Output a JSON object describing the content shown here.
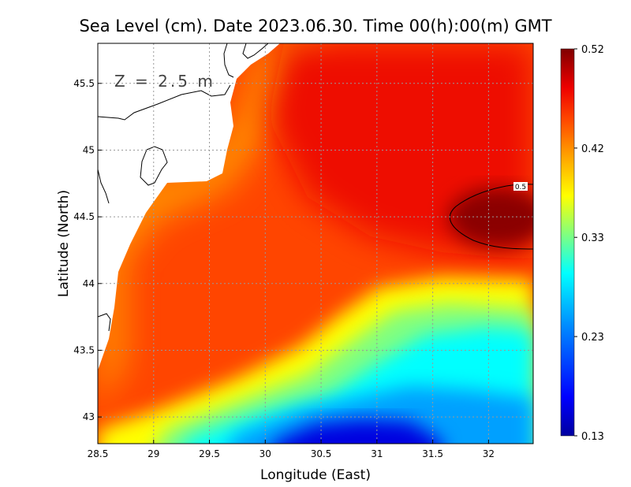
{
  "chart_data": {
    "type": "heatmap",
    "title": "Sea Level (cm). Date 2023.06.30. Time 00(h):00(m) GMT",
    "xlabel": "Longitude (East)",
    "ylabel": "Latitude (North)",
    "annotation": "Z = 2.5 m",
    "xlim": [
      28.5,
      32.4
    ],
    "ylim": [
      42.8,
      45.8
    ],
    "x_ticks": [
      {
        "value": 28.5,
        "label": "28.5"
      },
      {
        "value": 29,
        "label": "29"
      },
      {
        "value": 29.5,
        "label": "29.5"
      },
      {
        "value": 30,
        "label": "30"
      },
      {
        "value": 30.5,
        "label": "30.5"
      },
      {
        "value": 31,
        "label": "31"
      },
      {
        "value": 31.5,
        "label": "31.5"
      },
      {
        "value": 32,
        "label": "32"
      }
    ],
    "y_ticks": [
      {
        "value": 43,
        "label": "43"
      },
      {
        "value": 43.5,
        "label": "43.5"
      },
      {
        "value": 44,
        "label": "44"
      },
      {
        "value": 44.5,
        "label": "44.5"
      },
      {
        "value": 45,
        "label": "45"
      },
      {
        "value": 45.5,
        "label": "45.5"
      }
    ],
    "grid": true,
    "colorbar": {
      "min": 0.13,
      "max": 0.52,
      "ticks": [
        {
          "value": 0.52,
          "label": "0.52"
        },
        {
          "value": 0.42,
          "label": "0.42"
        },
        {
          "value": 0.33,
          "label": "0.33"
        },
        {
          "value": 0.23,
          "label": "0.23"
        },
        {
          "value": 0.13,
          "label": "0.13"
        }
      ],
      "colormap": [
        "#0000a0",
        "#0000ff",
        "#0088ff",
        "#00ffff",
        "#80ff80",
        "#ffff00",
        "#ffa500",
        "#ff4500",
        "#ee0000",
        "#800000"
      ]
    },
    "contours": [
      {
        "level": 0.5,
        "label": "0.5"
      }
    ],
    "field_samples": [
      {
        "lon": 28.6,
        "lat": 43.0,
        "value": 0.39
      },
      {
        "lon": 28.8,
        "lat": 43.8,
        "value": 0.44
      },
      {
        "lon": 29.0,
        "lat": 44.5,
        "value": 0.44
      },
      {
        "lon": 29.5,
        "lat": 43.2,
        "value": 0.38
      },
      {
        "lon": 29.5,
        "lat": 44.0,
        "value": 0.44
      },
      {
        "lon": 29.8,
        "lat": 45.2,
        "value": 0.43
      },
      {
        "lon": 30.0,
        "lat": 42.9,
        "value": 0.22
      },
      {
        "lon": 30.0,
        "lat": 43.5,
        "value": 0.43
      },
      {
        "lon": 30.0,
        "lat": 44.5,
        "value": 0.45
      },
      {
        "lon": 30.3,
        "lat": 45.7,
        "value": 0.42
      },
      {
        "lon": 30.5,
        "lat": 42.85,
        "value": 0.14
      },
      {
        "lon": 30.5,
        "lat": 43.3,
        "value": 0.31
      },
      {
        "lon": 30.5,
        "lat": 44.0,
        "value": 0.45
      },
      {
        "lon": 30.5,
        "lat": 45.0,
        "value": 0.46
      },
      {
        "lon": 31.0,
        "lat": 43.0,
        "value": 0.26
      },
      {
        "lon": 31.0,
        "lat": 43.6,
        "value": 0.36
      },
      {
        "lon": 31.0,
        "lat": 44.5,
        "value": 0.47
      },
      {
        "lon": 31.0,
        "lat": 45.5,
        "value": 0.47
      },
      {
        "lon": 31.5,
        "lat": 43.2,
        "value": 0.29
      },
      {
        "lon": 31.5,
        "lat": 43.9,
        "value": 0.37
      },
      {
        "lon": 31.5,
        "lat": 45.2,
        "value": 0.48
      },
      {
        "lon": 32.0,
        "lat": 43.2,
        "value": 0.3
      },
      {
        "lon": 32.0,
        "lat": 44.0,
        "value": 0.38
      },
      {
        "lon": 32.0,
        "lat": 44.5,
        "value": 0.52
      },
      {
        "lon": 32.0,
        "lat": 45.5,
        "value": 0.48
      }
    ],
    "color_note": "rough value-field shape that the script renders as color"
  }
}
